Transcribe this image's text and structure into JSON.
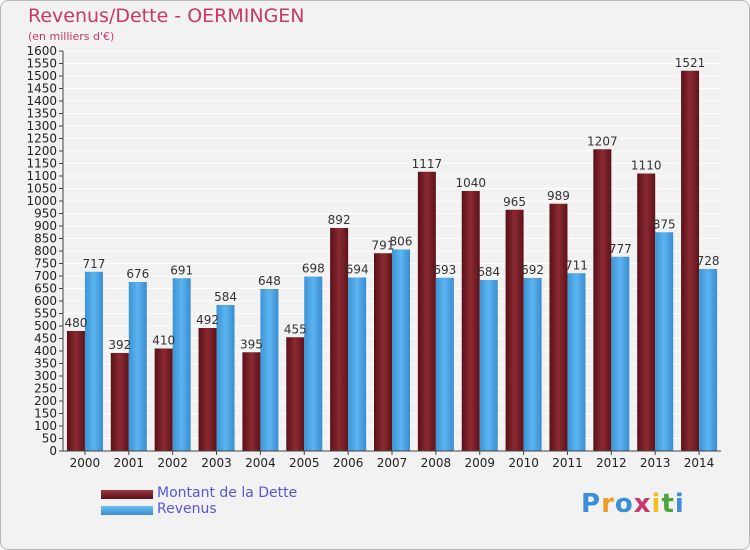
{
  "header": {
    "title": "Revenus/Dette - OERMINGEN",
    "subtitle": "(en milliers d'€)"
  },
  "colors": {
    "title": "#c8386c",
    "dette": "#7a1e26",
    "revenus": "#4aa3e4",
    "legend_text": "#5558d8"
  },
  "legend": {
    "items": [
      {
        "label": "Montant de la Dette",
        "color": "#7a1e26"
      },
      {
        "label": "Revenus",
        "color": "#4aa3e4"
      }
    ]
  },
  "logo": {
    "text": "Proxiti",
    "letter_colors": [
      "#3a8fd8",
      "#f09a2a",
      "#3a8fd8",
      "#c8386c",
      "#f0c020",
      "#4aa83c",
      "#3a8fd8"
    ]
  },
  "chart_data": {
    "type": "bar",
    "categories": [
      "2000",
      "2001",
      "2002",
      "2003",
      "2004",
      "2005",
      "2006",
      "2007",
      "2008",
      "2009",
      "2010",
      "2011",
      "2012",
      "2013",
      "2014"
    ],
    "series": [
      {
        "name": "Montant de la Dette",
        "values": [
          480,
          392,
          410,
          492,
          395,
          455,
          892,
          791,
          1117,
          1040,
          965,
          989,
          1207,
          1110,
          1521
        ]
      },
      {
        "name": "Revenus",
        "values": [
          717,
          676,
          691,
          584,
          648,
          698,
          694,
          806,
          693,
          684,
          692,
          711,
          777,
          875,
          728
        ]
      }
    ],
    "data_labels": {
      "Montant de la Dette": [
        "480",
        "392",
        "410",
        "492",
        "395",
        "455",
        "892",
        "791",
        "1117",
        "1040",
        "965",
        "989",
        "1207",
        "1110",
        "1521"
      ],
      "Revenus": [
        "717",
        "676",
        "691",
        "584",
        "648",
        "698",
        "694",
        "806",
        "693",
        "684",
        "692",
        "711",
        "777",
        "875",
        "728"
      ]
    },
    "title": "Revenus/Dette - OERMINGEN",
    "ylabel": "(en milliers d'€)",
    "ylim": [
      0,
      1600
    ],
    "yticks": [
      0,
      50,
      100,
      150,
      200,
      250,
      300,
      350,
      400,
      450,
      500,
      550,
      600,
      650,
      700,
      750,
      800,
      850,
      900,
      950,
      1000,
      1050,
      1100,
      1150,
      1200,
      1250,
      1300,
      1350,
      1400,
      1450,
      1500,
      1550,
      1600
    ],
    "ytick_labels": [
      "0",
      "50",
      "100",
      "150",
      "200",
      "250",
      "300",
      "350",
      "400",
      "450",
      "500",
      "550",
      "600",
      "650",
      "700",
      "750",
      "800",
      "850",
      "900",
      "950",
      "1000",
      "1050",
      "1100",
      "1150",
      "1200",
      "1250",
      "1300",
      "1350",
      "1400",
      "1450",
      "1500",
      "1550",
      "1600"
    ],
    "grid": true,
    "legend_position": "bottom-left"
  }
}
